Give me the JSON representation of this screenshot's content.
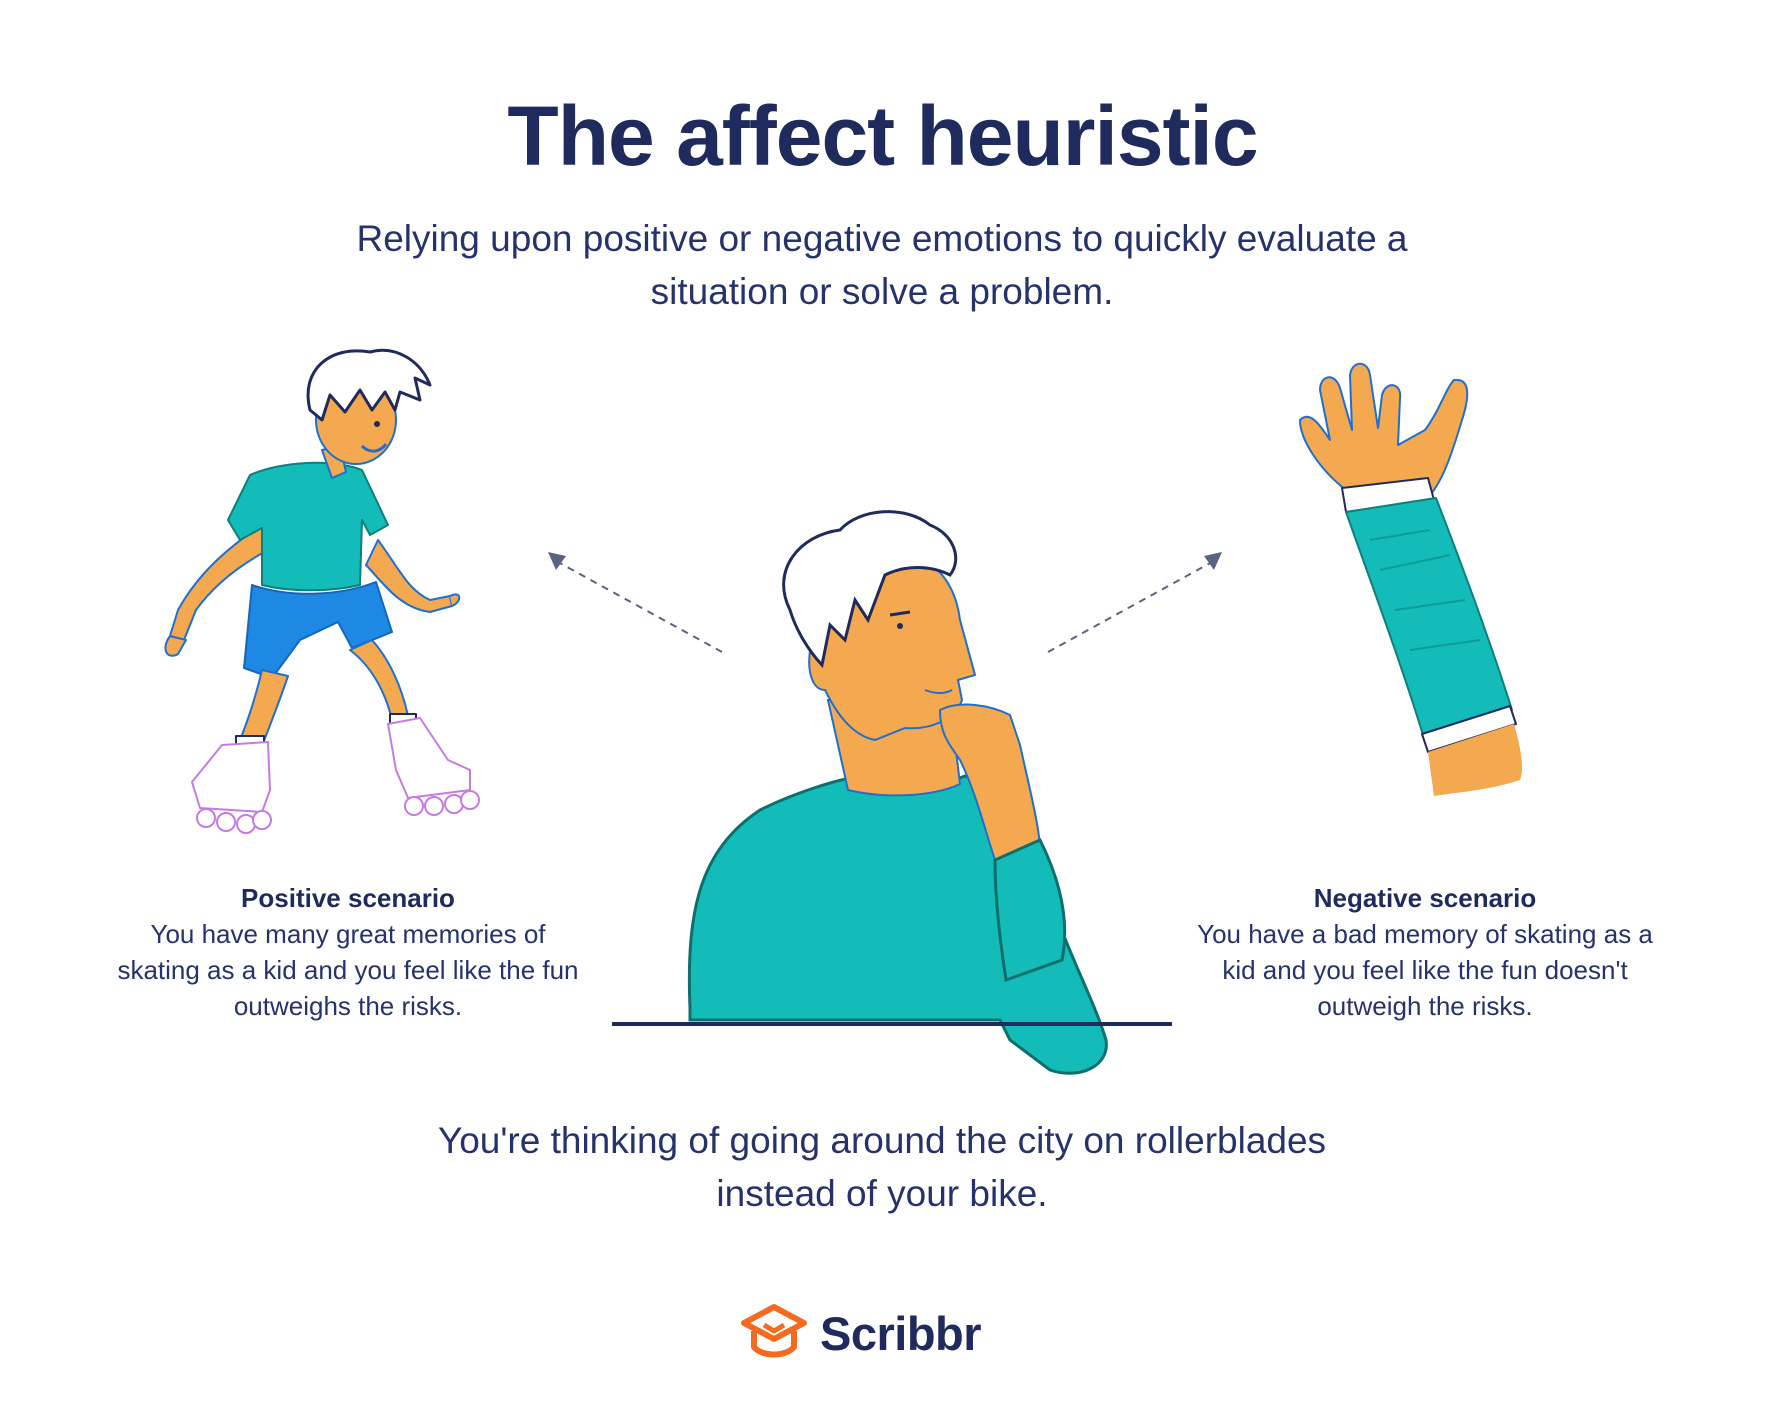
{
  "title": "The affect heuristic",
  "subtitle": "Relying upon positive or negative emotions to quickly evaluate a situation or solve a problem.",
  "positive": {
    "heading": "Positive scenario",
    "text": "You have many great memories of skating as a kid and you feel like the fun outweighs the risks."
  },
  "negative": {
    "heading": "Negative scenario",
    "text": "You have a bad memory of skating as a kid and you feel like the fun doesn't outweigh the risks."
  },
  "situation": "You're thinking of going around the city on rollerblades instead of your bike.",
  "brand": {
    "name": "Scribbr",
    "logo_icon": "graduation-cap-icon",
    "accent_color": "#f26b21"
  },
  "illustrations": {
    "left": "child-rollerblading-illustration",
    "center": "thinking-man-illustration",
    "right": "arm-in-cast-illustration"
  },
  "colors": {
    "navy": "#1f2b5c",
    "teal": "#13bcb8",
    "skin": "#f4a950",
    "blue": "#1e88e5",
    "lilac": "#d49be6"
  }
}
